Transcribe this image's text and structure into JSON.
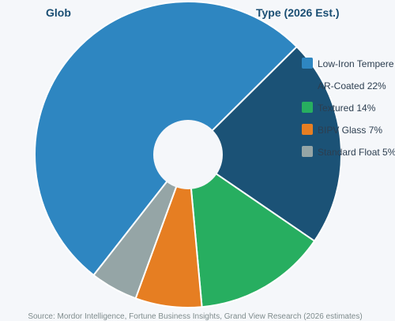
{
  "chart_data": {
    "type": "pie",
    "title_visible_left": "Glob",
    "title_visible_right": "Type (2026 Est.)",
    "categories": [
      "Low-Iron Tempered",
      "AR-Coated",
      "Textured",
      "BIPV Glass",
      "Standard Float"
    ],
    "values": [
      52,
      22,
      14,
      7,
      5
    ],
    "legend": [
      "Low-Iron Tempere",
      "AR-Coated 22%",
      "Textured 14%",
      "BIPV Glass 7%",
      "Standard Float 5%"
    ],
    "colors": [
      "#2e86c1",
      "#1b5276",
      "#27ae60",
      "#e67e22",
      "#95a5a6"
    ],
    "legend_position": "right",
    "source": "Source: Mordor Intelligence, Fortune Business Insights, Grand View Research (2026 estimates)"
  }
}
